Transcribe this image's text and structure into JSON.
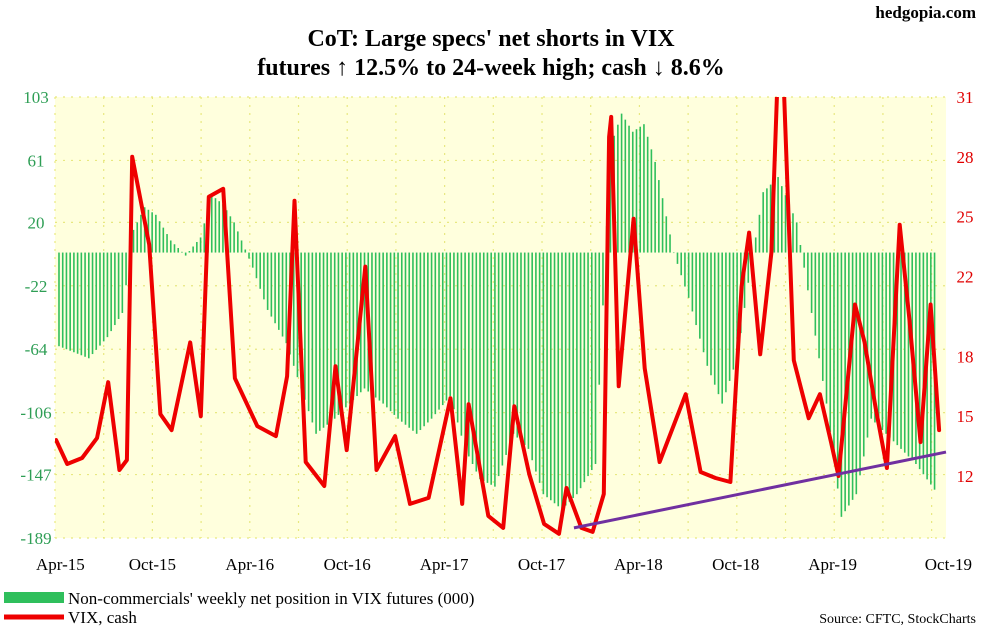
{
  "brand": "hedgopia.com",
  "title_lines": [
    "CoT: Large specs' net shorts in VIX",
    "futures ↑ 12.5% to 24-week high; cash ↓ 8.6%"
  ],
  "source": "Source: CFTC, StockCharts",
  "colors": {
    "bars": "#2fbf5c",
    "vix": "#ee0000",
    "trendline": "#7030a0",
    "plot_bg": "#ffffdd",
    "grid_dots": "#e8e880"
  },
  "chart_data": {
    "type": "bar+line",
    "x_ticks": [
      "Apr-15",
      "Oct-15",
      "Apr-16",
      "Oct-16",
      "Apr-17",
      "Oct-17",
      "Apr-18",
      "Oct-18",
      "Apr-19",
      "Oct-19"
    ],
    "x_tick_dates": [
      "2015-04-01",
      "2015-10-01",
      "2016-04-01",
      "2016-10-01",
      "2017-04-01",
      "2017-10-01",
      "2018-04-01",
      "2018-10-01",
      "2019-04-01",
      "2019-10-01"
    ],
    "x_range": [
      "2015-04-01",
      "2019-10-31"
    ],
    "y_left": {
      "ticks": [
        103,
        61,
        20,
        -22,
        -64,
        -106,
        -147,
        -189
      ],
      "range": [
        -189,
        103
      ]
    },
    "y_right": {
      "ticks": [
        31,
        28,
        25,
        22,
        18,
        15,
        12
      ],
      "range": [
        9.4,
        31
      ]
    },
    "grid": true,
    "legend_position": "bottom-left",
    "series": [
      {
        "name": "Non-commercials' weekly net position in VIX futures (000)",
        "type": "bar",
        "axis": "left",
        "points": [
          [
            "2015-04-07",
            -62
          ],
          [
            "2015-05-05",
            -66
          ],
          [
            "2015-06-02",
            -70
          ],
          [
            "2015-07-07",
            -56
          ],
          [
            "2015-08-04",
            -40
          ],
          [
            "2015-08-25",
            15
          ],
          [
            "2015-09-15",
            30
          ],
          [
            "2015-10-06",
            25
          ],
          [
            "2015-11-03",
            8
          ],
          [
            "2015-12-01",
            -2
          ],
          [
            "2015-12-29",
            10
          ],
          [
            "2016-01-19",
            38
          ],
          [
            "2016-02-09",
            32
          ],
          [
            "2016-03-01",
            20
          ],
          [
            "2016-04-05",
            -10
          ],
          [
            "2016-05-03",
            -38
          ],
          [
            "2016-06-07",
            -60
          ],
          [
            "2016-07-05",
            -90
          ],
          [
            "2016-08-02",
            -120
          ],
          [
            "2016-09-06",
            -110
          ],
          [
            "2016-10-04",
            -100
          ],
          [
            "2016-11-01",
            -90
          ],
          [
            "2016-12-06",
            -100
          ],
          [
            "2017-01-03",
            -110
          ],
          [
            "2017-02-07",
            -120
          ],
          [
            "2017-03-07",
            -110
          ],
          [
            "2017-04-11",
            -95
          ],
          [
            "2017-05-09",
            -130
          ],
          [
            "2017-06-06",
            -150
          ],
          [
            "2017-07-04",
            -155
          ],
          [
            "2017-08-08",
            -120
          ],
          [
            "2017-09-05",
            -130
          ],
          [
            "2017-10-03",
            -160
          ],
          [
            "2017-11-07",
            -170
          ],
          [
            "2017-12-05",
            -160
          ],
          [
            "2018-01-09",
            -140
          ],
          [
            "2018-02-06",
            70
          ],
          [
            "2018-02-27",
            92
          ],
          [
            "2018-03-20",
            80
          ],
          [
            "2018-04-10",
            85
          ],
          [
            "2018-05-01",
            60
          ],
          [
            "2018-06-05",
            0
          ],
          [
            "2018-07-03",
            -30
          ],
          [
            "2018-08-07",
            -75
          ],
          [
            "2018-09-04",
            -100
          ],
          [
            "2018-10-02",
            -70
          ],
          [
            "2018-10-23",
            -20
          ],
          [
            "2018-11-20",
            40
          ],
          [
            "2018-12-18",
            50
          ],
          [
            "2019-01-22",
            20
          ],
          [
            "2019-02-19",
            -40
          ],
          [
            "2019-03-19",
            -100
          ],
          [
            "2019-04-16",
            -175
          ],
          [
            "2019-05-14",
            -160
          ],
          [
            "2019-06-11",
            -110
          ],
          [
            "2019-07-09",
            -120
          ],
          [
            "2019-08-06",
            -130
          ],
          [
            "2019-09-03",
            -140
          ],
          [
            "2019-10-08",
            -157
          ]
        ]
      },
      {
        "name": "VIX, cash",
        "type": "line",
        "axis": "right",
        "points": [
          [
            "2015-04-03",
            13.8
          ],
          [
            "2015-04-24",
            12.6
          ],
          [
            "2015-05-22",
            12.9
          ],
          [
            "2015-06-19",
            13.9
          ],
          [
            "2015-07-10",
            16.7
          ],
          [
            "2015-07-31",
            12.3
          ],
          [
            "2015-08-14",
            12.8
          ],
          [
            "2015-08-24",
            28.0
          ],
          [
            "2015-09-04",
            26.5
          ],
          [
            "2015-09-25",
            23.6
          ],
          [
            "2015-10-16",
            15.1
          ],
          [
            "2015-11-06",
            14.3
          ],
          [
            "2015-12-11",
            18.7
          ],
          [
            "2015-12-31",
            15.0
          ],
          [
            "2016-01-15",
            26.0
          ],
          [
            "2016-02-11",
            26.4
          ],
          [
            "2016-03-04",
            16.9
          ],
          [
            "2016-04-15",
            14.5
          ],
          [
            "2016-05-20",
            14.0
          ],
          [
            "2016-06-10",
            17.0
          ],
          [
            "2016-06-24",
            25.8
          ],
          [
            "2016-07-15",
            12.7
          ],
          [
            "2016-08-19",
            11.5
          ],
          [
            "2016-09-09",
            17.5
          ],
          [
            "2016-09-30",
            13.3
          ],
          [
            "2016-11-04",
            22.5
          ],
          [
            "2016-11-25",
            12.3
          ],
          [
            "2016-12-30",
            14.0
          ],
          [
            "2017-01-27",
            10.6
          ],
          [
            "2017-03-03",
            10.9
          ],
          [
            "2017-04-13",
            15.9
          ],
          [
            "2017-05-05",
            10.6
          ],
          [
            "2017-05-17",
            15.6
          ],
          [
            "2017-06-23",
            10.0
          ],
          [
            "2017-07-21",
            9.4
          ],
          [
            "2017-08-11",
            15.5
          ],
          [
            "2017-09-08",
            12.1
          ],
          [
            "2017-10-06",
            9.6
          ],
          [
            "2017-11-03",
            9.1
          ],
          [
            "2017-11-17",
            11.4
          ],
          [
            "2017-12-15",
            9.4
          ],
          [
            "2018-01-05",
            9.2
          ],
          [
            "2018-01-26",
            11.1
          ],
          [
            "2018-02-05",
            29.0
          ],
          [
            "2018-02-09",
            30.0
          ],
          [
            "2018-02-23",
            16.5
          ],
          [
            "2018-03-23",
            24.9
          ],
          [
            "2018-04-13",
            17.4
          ],
          [
            "2018-05-11",
            12.7
          ],
          [
            "2018-06-29",
            16.1
          ],
          [
            "2018-07-27",
            12.2
          ],
          [
            "2018-08-24",
            11.9
          ],
          [
            "2018-09-21",
            11.7
          ],
          [
            "2018-10-12",
            21.5
          ],
          [
            "2018-10-26",
            24.2
          ],
          [
            "2018-11-16",
            18.1
          ],
          [
            "2018-12-07",
            23.2
          ],
          [
            "2018-12-24",
            36.1
          ],
          [
            "2019-01-18",
            17.8
          ],
          [
            "2019-02-15",
            14.9
          ],
          [
            "2019-03-08",
            16.1
          ],
          [
            "2019-03-29",
            13.7
          ],
          [
            "2019-04-12",
            12.0
          ],
          [
            "2019-05-13",
            20.6
          ],
          [
            "2019-05-31",
            18.7
          ],
          [
            "2019-06-21",
            15.4
          ],
          [
            "2019-07-12",
            12.4
          ],
          [
            "2019-08-05",
            24.6
          ],
          [
            "2019-08-23",
            19.9
          ],
          [
            "2019-09-13",
            13.7
          ],
          [
            "2019-10-02",
            20.6
          ],
          [
            "2019-10-18",
            14.3
          ]
        ]
      },
      {
        "type": "trendline",
        "axis": "right",
        "points": [
          [
            "2017-12-01",
            9.4
          ],
          [
            "2019-10-31",
            13.2
          ]
        ]
      }
    ]
  }
}
